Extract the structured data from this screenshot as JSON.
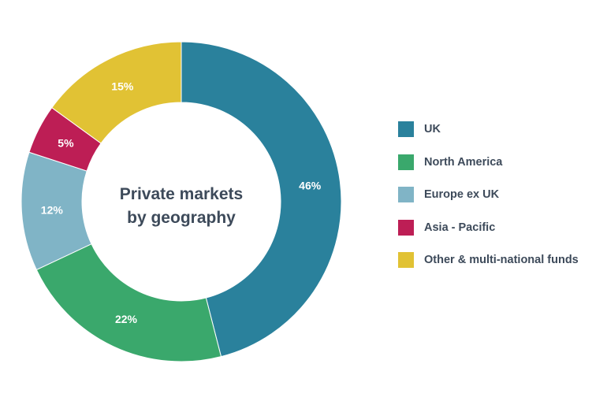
{
  "chart_data": {
    "type": "pie",
    "title": [
      "Private markets",
      "by geography"
    ],
    "categories": [
      "UK",
      "North America",
      "Europe ex UK",
      "Asia - Pacific",
      "Other & multi-national funds"
    ],
    "values": [
      46,
      22,
      12,
      5,
      15
    ],
    "value_labels": [
      "46%",
      "22%",
      "12%",
      "5%",
      "15%"
    ],
    "colors": [
      "#2a819c",
      "#3aa86c",
      "#80b4c6",
      "#bd1e55",
      "#e1c234"
    ],
    "legend_position": "right",
    "donut": true
  }
}
